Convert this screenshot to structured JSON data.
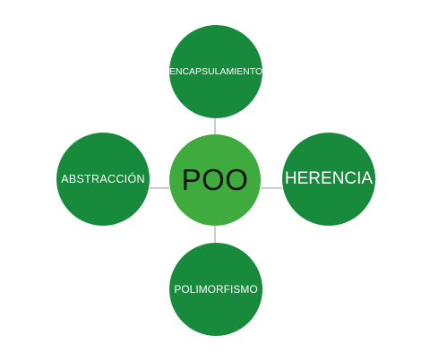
{
  "diagram": {
    "center": {
      "label": "POO"
    },
    "nodes": [
      {
        "id": "top",
        "label": "ENCAPSULAMIENTO"
      },
      {
        "id": "left",
        "label": "ABSTRACCIÓN"
      },
      {
        "id": "right",
        "label": "HERENCIA"
      },
      {
        "id": "bottom",
        "label": "POLIMORFISMO"
      }
    ],
    "colors": {
      "outer_node": "#178a3b",
      "center_node": "#3fab3f",
      "connector": "#9a9a9a",
      "outer_text": "#ffffff",
      "center_text": "#111111"
    }
  }
}
